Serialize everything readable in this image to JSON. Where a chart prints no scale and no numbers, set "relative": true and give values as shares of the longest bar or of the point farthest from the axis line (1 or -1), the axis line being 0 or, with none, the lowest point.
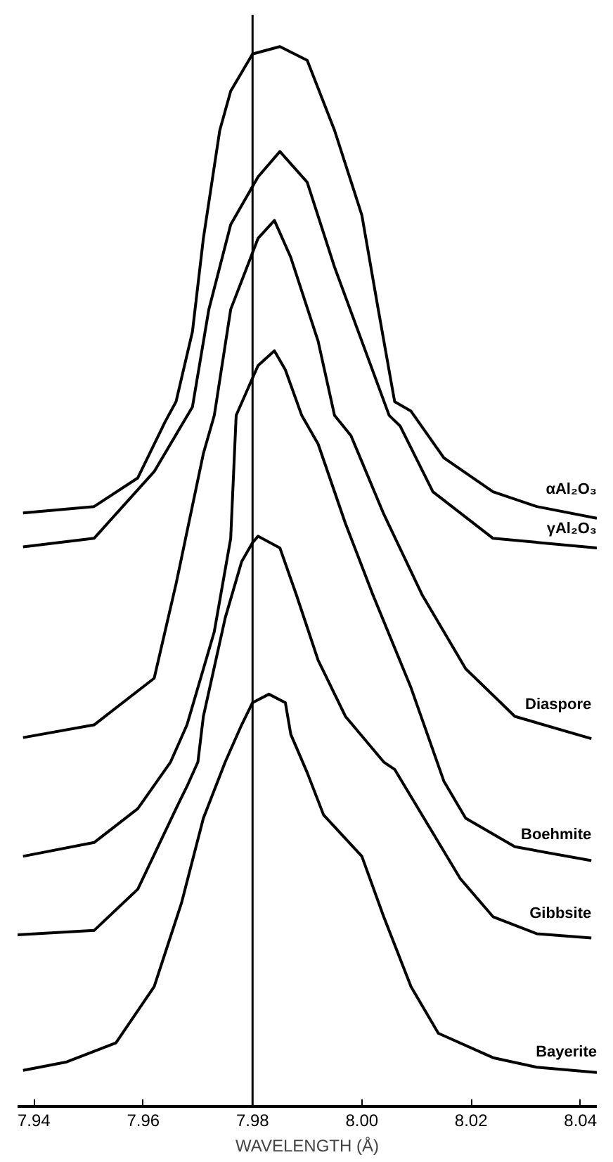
{
  "chart_data": {
    "type": "line",
    "xlabel": "WAVELENGTH (Å)",
    "relative": true,
    "xlim": [
      7.937,
      8.043
    ],
    "xticks": [
      7.94,
      7.96,
      7.98,
      {
        "value": 8.0,
        "label": "8.00"
      },
      8.02,
      8.04
    ],
    "grid": false,
    "line_style": "solid",
    "ref_lines": [
      {
        "axis": "x",
        "value": 7.98
      }
    ],
    "series": [
      {
        "name": "αAl₂O₃",
        "color": "#000000",
        "x": [
          7.938,
          7.951,
          7.959,
          7.964,
          7.966,
          7.969,
          7.971,
          7.974,
          7.976,
          7.98,
          7.985,
          7.99,
          7.995,
          8.0,
          8.003,
          8.006,
          8.009,
          8.015,
          8.024,
          8.032,
          8.043
        ],
        "values": [
          0.56,
          0.566,
          0.593,
          0.646,
          0.665,
          0.731,
          0.819,
          0.921,
          0.958,
          0.993,
          1.0,
          0.987,
          0.921,
          0.841,
          0.752,
          0.665,
          0.656,
          0.612,
          0.58,
          0.566,
          0.555
        ]
      },
      {
        "name": "γAl₂O₃",
        "color": "#000000",
        "x": [
          7.938,
          7.951,
          7.962,
          7.969,
          7.972,
          7.976,
          7.981,
          7.985,
          7.99,
          7.995,
          8.0,
          8.005,
          8.007,
          8.013,
          8.024,
          8.043
        ],
        "values": [
          0.528,
          0.536,
          0.599,
          0.66,
          0.752,
          0.832,
          0.877,
          0.901,
          0.872,
          0.792,
          0.722,
          0.652,
          0.642,
          0.58,
          0.536,
          0.527
        ]
      },
      {
        "name": "Diaspore",
        "color": "#000000",
        "x": [
          7.938,
          7.951,
          7.962,
          7.966,
          7.971,
          7.973,
          7.976,
          7.981,
          7.984,
          7.987,
          7.992,
          7.995,
          7.998,
          8.004,
          8.011,
          8.019,
          8.028,
          8.042
        ],
        "values": [
          0.348,
          0.36,
          0.404,
          0.493,
          0.616,
          0.652,
          0.752,
          0.819,
          0.836,
          0.801,
          0.722,
          0.652,
          0.633,
          0.559,
          0.483,
          0.413,
          0.368,
          0.347
        ]
      },
      {
        "name": "Boehmite",
        "color": "#000000",
        "x": [
          7.938,
          7.951,
          7.959,
          7.965,
          7.968,
          7.973,
          7.976,
          7.977,
          7.981,
          7.984,
          7.986,
          7.989,
          7.992,
          7.997,
          8.002,
          8.009,
          8.015,
          8.019,
          8.028,
          8.042
        ],
        "values": [
          0.236,
          0.249,
          0.281,
          0.325,
          0.36,
          0.448,
          0.536,
          0.652,
          0.699,
          0.713,
          0.695,
          0.652,
          0.625,
          0.55,
          0.483,
          0.395,
          0.307,
          0.272,
          0.245,
          0.232
        ]
      },
      {
        "name": "Gibbsite",
        "color": "#000000",
        "x": [
          7.937,
          7.951,
          7.959,
          7.966,
          7.968,
          7.97,
          7.971,
          7.975,
          7.978,
          7.98,
          7.981,
          7.985,
          7.988,
          7.992,
          7.997,
          8.004,
          8.006,
          8.013,
          8.018,
          8.024,
          8.032,
          8.042
        ],
        "values": [
          0.162,
          0.166,
          0.205,
          0.281,
          0.302,
          0.325,
          0.368,
          0.461,
          0.514,
          0.532,
          0.538,
          0.527,
          0.483,
          0.421,
          0.368,
          0.325,
          0.318,
          0.258,
          0.215,
          0.179,
          0.163,
          0.159
        ]
      },
      {
        "name": "Bayerite",
        "color": "#000000",
        "x": [
          7.938,
          7.946,
          7.955,
          7.962,
          7.967,
          7.971,
          7.975,
          7.978,
          7.98,
          7.983,
          7.986,
          7.987,
          7.99,
          7.993,
          8.0,
          8.004,
          8.009,
          8.014,
          8.024,
          8.032,
          8.043
        ],
        "values": [
          0.034,
          0.042,
          0.06,
          0.113,
          0.192,
          0.272,
          0.325,
          0.36,
          0.381,
          0.389,
          0.381,
          0.351,
          0.315,
          0.275,
          0.236,
          0.179,
          0.113,
          0.069,
          0.046,
          0.037,
          0.032
        ]
      }
    ]
  }
}
